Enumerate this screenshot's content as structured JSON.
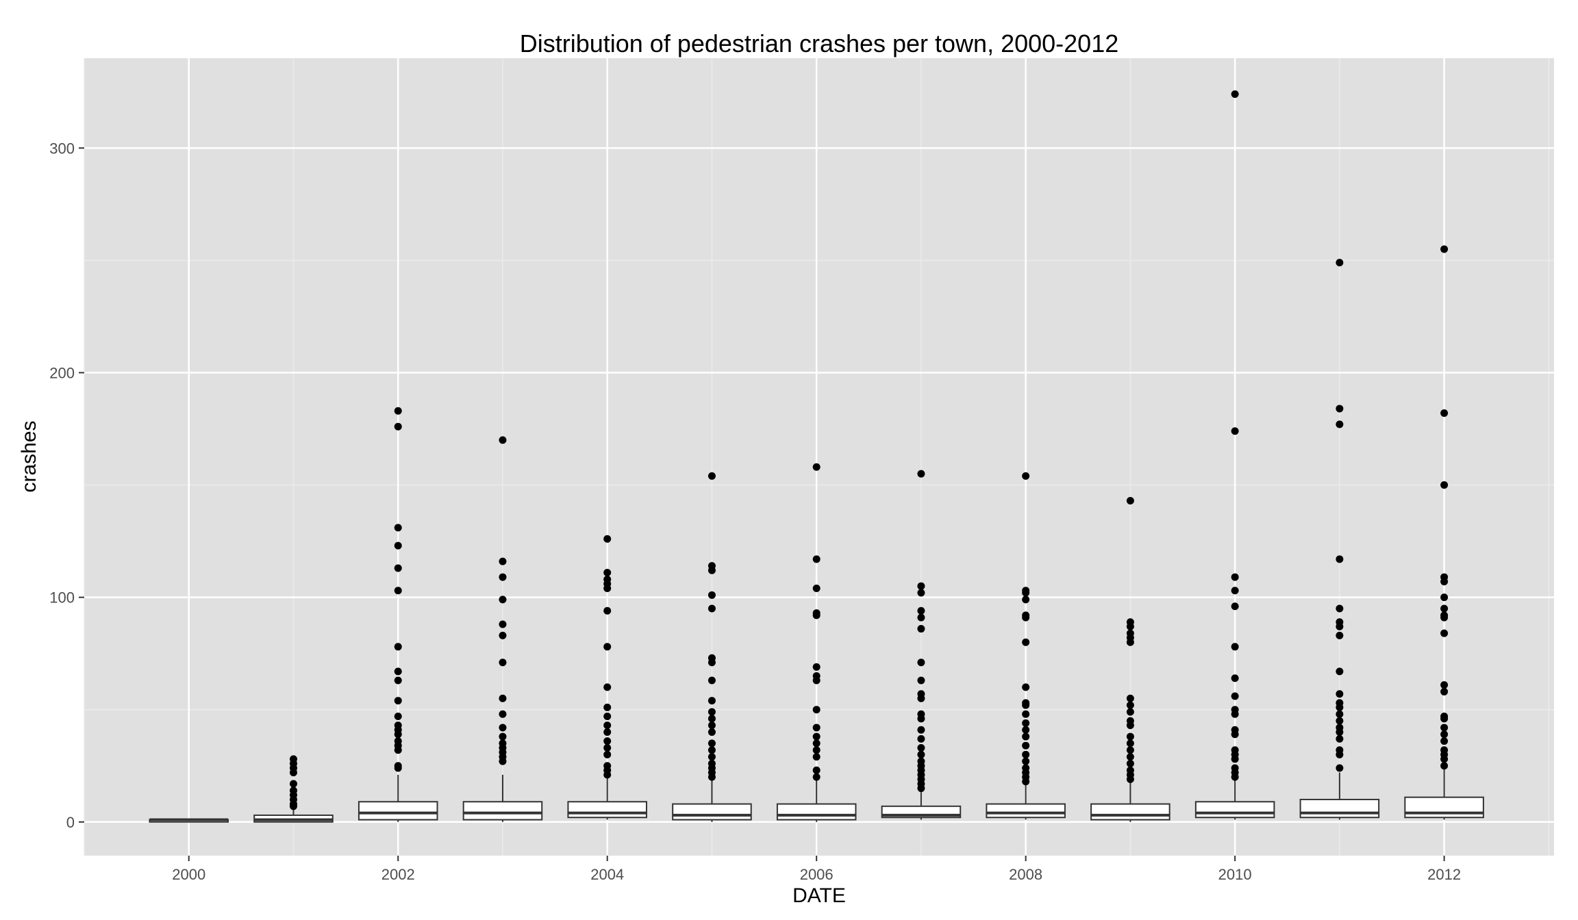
{
  "chart_data": {
    "type": "boxplot",
    "title": "Distribution of pedestrian crashes per town, 2000-2012",
    "xlabel": "DATE",
    "ylabel": "crashes",
    "ylim": [
      -15,
      340
    ],
    "xlim": [
      1999.0,
      2013.05
    ],
    "x_ticks": [
      2000,
      2002,
      2004,
      2006,
      2008,
      2010,
      2012
    ],
    "y_ticks": [
      0,
      100,
      200,
      300
    ],
    "grid": true,
    "colors": {
      "panel": "#e0e0e0",
      "grid_major": "#ffffff",
      "grid_minor": "#ebebeb",
      "box_fill": "#ffffff",
      "box_stroke": "#333333",
      "outlier": "#000000",
      "tick_label": "#4d4d4d"
    },
    "boxes": [
      {
        "x": 2000,
        "min": 0,
        "q1": 0,
        "median": 1,
        "q3": 1,
        "max": 1,
        "outliers": []
      },
      {
        "x": 2001,
        "min": 0,
        "q1": 0,
        "median": 1,
        "q3": 3,
        "max": 7,
        "outliers": [
          7,
          8,
          10,
          12,
          14,
          17,
          22,
          24,
          26,
          28
        ]
      },
      {
        "x": 2002,
        "min": 0,
        "q1": 1,
        "median": 4,
        "q3": 9,
        "max": 21,
        "outliers": [
          24,
          25,
          32,
          34,
          36,
          39,
          41,
          43,
          47,
          54,
          63,
          67,
          78,
          103,
          113,
          123,
          131,
          176,
          183
        ]
      },
      {
        "x": 2003,
        "min": 0,
        "q1": 1,
        "median": 4,
        "q3": 9,
        "max": 21,
        "outliers": [
          27,
          29,
          31,
          33,
          35,
          38,
          42,
          48,
          55,
          71,
          83,
          88,
          99,
          109,
          116,
          170
        ]
      },
      {
        "x": 2004,
        "min": 1,
        "q1": 2,
        "median": 4,
        "q3": 9,
        "max": 20,
        "outliers": [
          21,
          23,
          25,
          30,
          33,
          36,
          40,
          43,
          47,
          51,
          60,
          78,
          94,
          104,
          106,
          108,
          111,
          126
        ]
      },
      {
        "x": 2005,
        "min": 0,
        "q1": 1,
        "median": 3,
        "q3": 8,
        "max": 19,
        "outliers": [
          20,
          22,
          24,
          26,
          29,
          32,
          35,
          40,
          43,
          46,
          49,
          54,
          63,
          71,
          73,
          95,
          101,
          112,
          114,
          154
        ]
      },
      {
        "x": 2006,
        "min": 0,
        "q1": 1,
        "median": 3,
        "q3": 8,
        "max": 19,
        "outliers": [
          20,
          23,
          29,
          32,
          35,
          38,
          42,
          50,
          63,
          65,
          69,
          92,
          93,
          104,
          117,
          158
        ]
      },
      {
        "x": 2007,
        "min": 1,
        "q1": 2,
        "median": 3,
        "q3": 7,
        "max": 14,
        "outliers": [
          15,
          17,
          19,
          21,
          23,
          25,
          27,
          30,
          33,
          37,
          41,
          46,
          48,
          55,
          57,
          63,
          71,
          86,
          91,
          94,
          102,
          105,
          155
        ]
      },
      {
        "x": 2008,
        "min": 1,
        "q1": 2,
        "median": 4,
        "q3": 8,
        "max": 17,
        "outliers": [
          18,
          20,
          22,
          24,
          27,
          30,
          34,
          38,
          41,
          44,
          48,
          52,
          53,
          60,
          80,
          91,
          92,
          99,
          102,
          103,
          154
        ]
      },
      {
        "x": 2009,
        "min": 0,
        "q1": 1,
        "median": 3,
        "q3": 8,
        "max": 18,
        "outliers": [
          19,
          21,
          23,
          26,
          29,
          32,
          35,
          38,
          43,
          45,
          49,
          52,
          55,
          80,
          82,
          84,
          87,
          89,
          143
        ]
      },
      {
        "x": 2010,
        "min": 1,
        "q1": 2,
        "median": 4,
        "q3": 9,
        "max": 19,
        "outliers": [
          20,
          22,
          24,
          28,
          30,
          32,
          39,
          41,
          48,
          50,
          56,
          64,
          78,
          96,
          103,
          109,
          174,
          324
        ]
      },
      {
        "x": 2011,
        "min": 1,
        "q1": 2,
        "median": 4,
        "q3": 10,
        "max": 22,
        "outliers": [
          24,
          30,
          32,
          37,
          40,
          42,
          45,
          48,
          51,
          53,
          57,
          67,
          83,
          87,
          89,
          95,
          117,
          177,
          184,
          249
        ]
      },
      {
        "x": 2012,
        "min": 1,
        "q1": 2,
        "median": 4,
        "q3": 11,
        "max": 24,
        "outliers": [
          25,
          28,
          30,
          32,
          36,
          39,
          42,
          46,
          47,
          58,
          61,
          84,
          91,
          92,
          95,
          100,
          107,
          109,
          150,
          182,
          255
        ]
      }
    ]
  }
}
